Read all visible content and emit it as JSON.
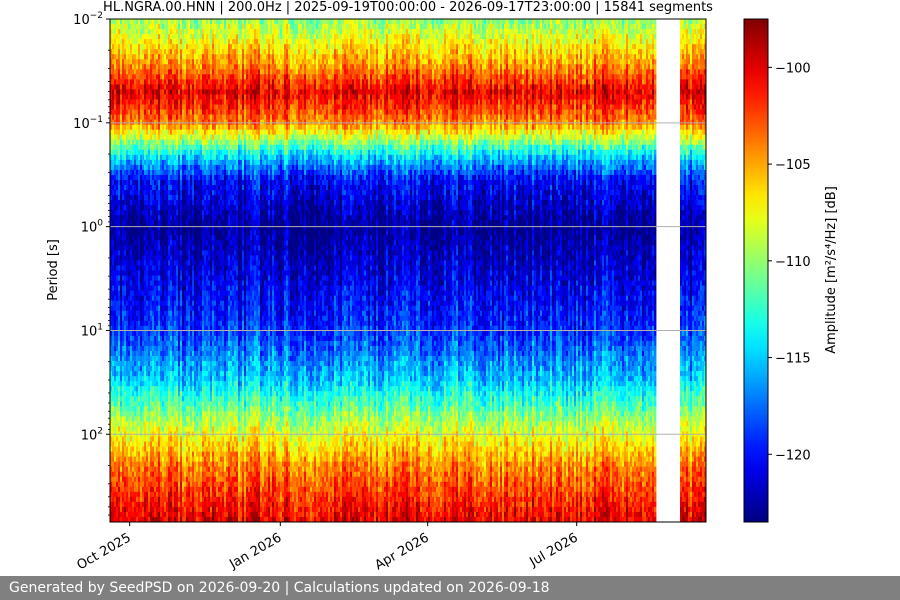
{
  "chart_data": {
    "type": "heatmap",
    "title": "HL.NGRA.00.HNN | 200.0Hz | 2025-09-19T00:00:00 - 2026-09-17T23:00:00 | 15841 segments",
    "ylabel": "Period [s]",
    "xlabel": "",
    "y_scale": "log",
    "y_inverted": true,
    "y_range": [
      0.01,
      700
    ],
    "y_ticks": [
      {
        "value": 0.01,
        "base": "10",
        "exp": "−2"
      },
      {
        "value": 0.1,
        "base": "10",
        "exp": "−1"
      },
      {
        "value": 1,
        "base": "10",
        "exp": "0"
      },
      {
        "value": 10,
        "base": "10",
        "exp": "1"
      },
      {
        "value": 100,
        "base": "10",
        "exp": "2"
      }
    ],
    "x_range": [
      "2025-09-19",
      "2026-09-17"
    ],
    "x_ticks": [
      {
        "date": "2025-10-01",
        "label": "Oct 2025"
      },
      {
        "date": "2026-01-01",
        "label": "Jan 2026"
      },
      {
        "date": "2026-04-01",
        "label": "Apr 2026"
      },
      {
        "date": "2026-07-01",
        "label": "Jul 2026"
      }
    ],
    "data_gap": [
      "2026-08-19",
      "2026-09-01"
    ],
    "grid": true,
    "colormap": "jet",
    "colorbar": {
      "label": "Amplitude [m²/s⁴/Hz] [dB]",
      "range": [
        -123.5,
        -97.5
      ],
      "ticks": [
        -100,
        -105,
        -110,
        -115,
        -120
      ]
    },
    "mean_profile_db": [
      {
        "period": 0.01,
        "db": -110
      },
      {
        "period": 0.03,
        "db": -104
      },
      {
        "period": 0.05,
        "db": -100
      },
      {
        "period": 0.1,
        "db": -104
      },
      {
        "period": 0.2,
        "db": -114
      },
      {
        "period": 0.35,
        "db": -120
      },
      {
        "period": 1,
        "db": -123
      },
      {
        "period": 3,
        "db": -121
      },
      {
        "period": 10,
        "db": -119
      },
      {
        "period": 30,
        "db": -115
      },
      {
        "period": 80,
        "db": -109
      },
      {
        "period": 200,
        "db": -104
      },
      {
        "period": 700,
        "db": -100
      }
    ]
  },
  "footer": {
    "text": "Generated by SeedPSD on 2026-09-20 | Calculations updated on 2026-09-18"
  }
}
